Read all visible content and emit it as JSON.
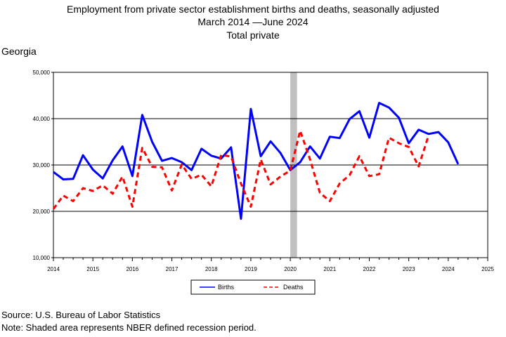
{
  "title": {
    "line1": "Employment from private sector establishment births and deaths, seasonally adjusted",
    "line2": "March 2014 —June 2024",
    "line3": "Total private"
  },
  "region_label": "Georgia",
  "footer": {
    "source": "Source: U.S. Bureau of Labor Statistics",
    "note": "Note: Shaded area represents NBER defined recession period."
  },
  "colors": {
    "births": "#0000ff",
    "deaths": "#ff0000",
    "recession": "#c0c0c0"
  },
  "chart_data": {
    "type": "line",
    "xlim": [
      2014,
      2025
    ],
    "ylim": [
      10000,
      50000
    ],
    "y_ticks": [
      10000,
      20000,
      30000,
      40000,
      50000
    ],
    "y_tick_labels": [
      "10,000",
      "20,000",
      "30,000",
      "40,000",
      "50,000"
    ],
    "x_ticks": [
      2014,
      2015,
      2016,
      2017,
      2018,
      2019,
      2020,
      2021,
      2022,
      2023,
      2024,
      2025
    ],
    "x_tick_labels": [
      "2014",
      "2015",
      "2016",
      "2017",
      "2018",
      "2019",
      "2020",
      "2021",
      "2022",
      "2023",
      "2024",
      "2025"
    ],
    "grid": "horizontal",
    "legend": "bottom-center",
    "recession": [
      2020.0,
      2020.17
    ],
    "series": [
      {
        "name": "Births",
        "style": "solid",
        "points": [
          [
            2014.0,
            28500
          ],
          [
            2014.25,
            26900
          ],
          [
            2014.5,
            27000
          ],
          [
            2014.75,
            32100
          ],
          [
            2015.0,
            29000
          ],
          [
            2015.25,
            27100
          ],
          [
            2015.5,
            31000
          ],
          [
            2015.75,
            34000
          ],
          [
            2016.0,
            27600
          ],
          [
            2016.25,
            40800
          ],
          [
            2016.5,
            35000
          ],
          [
            2016.75,
            30900
          ],
          [
            2017.0,
            31500
          ],
          [
            2017.25,
            30600
          ],
          [
            2017.5,
            28900
          ],
          [
            2017.75,
            33500
          ],
          [
            2018.0,
            32000
          ],
          [
            2018.25,
            31400
          ],
          [
            2018.5,
            33800
          ],
          [
            2018.75,
            18400
          ],
          [
            2019.0,
            42100
          ],
          [
            2019.25,
            31900
          ],
          [
            2019.5,
            35100
          ],
          [
            2019.75,
            32600
          ],
          [
            2020.0,
            28900
          ],
          [
            2020.25,
            30600
          ],
          [
            2020.5,
            34000
          ],
          [
            2020.75,
            31400
          ],
          [
            2021.0,
            36100
          ],
          [
            2021.25,
            35800
          ],
          [
            2021.5,
            39900
          ],
          [
            2021.75,
            41600
          ],
          [
            2022.0,
            35900
          ],
          [
            2022.25,
            43400
          ],
          [
            2022.5,
            42400
          ],
          [
            2022.75,
            40200
          ],
          [
            2023.0,
            34700
          ],
          [
            2023.25,
            37600
          ],
          [
            2023.5,
            36700
          ],
          [
            2023.75,
            37100
          ],
          [
            2024.0,
            34900
          ],
          [
            2024.25,
            30200
          ]
        ]
      },
      {
        "name": "Deaths",
        "style": "dashed",
        "points": [
          [
            2014.0,
            20500
          ],
          [
            2014.25,
            23400
          ],
          [
            2014.5,
            22200
          ],
          [
            2014.75,
            25000
          ],
          [
            2015.0,
            24400
          ],
          [
            2015.25,
            25600
          ],
          [
            2015.5,
            23800
          ],
          [
            2015.75,
            27500
          ],
          [
            2016.0,
            21000
          ],
          [
            2016.25,
            33700
          ],
          [
            2016.5,
            29600
          ],
          [
            2016.75,
            29500
          ],
          [
            2017.0,
            24500
          ],
          [
            2017.25,
            30100
          ],
          [
            2017.5,
            27000
          ],
          [
            2017.75,
            27900
          ],
          [
            2018.0,
            25400
          ],
          [
            2018.25,
            32200
          ],
          [
            2018.5,
            31800
          ],
          [
            2018.75,
            26000
          ],
          [
            2019.0,
            21000
          ],
          [
            2019.25,
            31200
          ],
          [
            2019.5,
            25800
          ],
          [
            2019.75,
            27500
          ],
          [
            2020.0,
            28800
          ],
          [
            2020.25,
            37400
          ],
          [
            2020.5,
            31200
          ],
          [
            2020.75,
            24000
          ],
          [
            2021.0,
            22200
          ],
          [
            2021.25,
            26000
          ],
          [
            2021.5,
            27800
          ],
          [
            2021.75,
            31900
          ],
          [
            2022.0,
            27600
          ],
          [
            2022.25,
            28000
          ],
          [
            2022.5,
            35900
          ],
          [
            2022.75,
            34700
          ],
          [
            2023.0,
            33900
          ],
          [
            2023.25,
            29700
          ],
          [
            2023.5,
            36300
          ]
        ]
      }
    ]
  }
}
